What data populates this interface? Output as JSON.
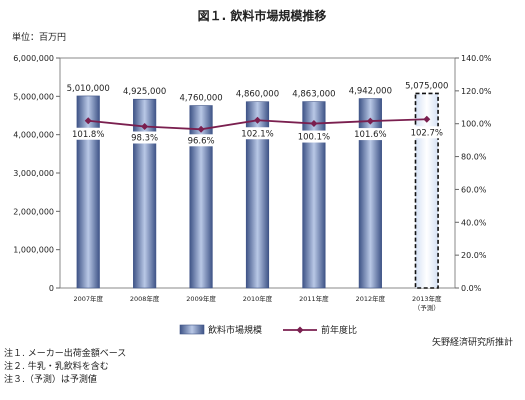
{
  "chart_data": {
    "type": "bar",
    "title": "図１. 飲料市場規模推移",
    "unit_label": "単位：百万円",
    "categories": [
      "2007年度",
      "2008年度",
      "2009年度",
      "2010年度",
      "2011年度",
      "2012年度",
      "2013年度"
    ],
    "category_sublabels": [
      "",
      "",
      "",
      "",
      "",
      "",
      "（予測）"
    ],
    "series": [
      {
        "name": "飲料市場規模",
        "type": "bar",
        "axis": "left",
        "values": [
          5010000,
          4925000,
          4760000,
          4860000,
          4863000,
          4942000,
          5075000
        ],
        "value_labels": [
          "5,010,000",
          "4,925,000",
          "4,760,000",
          "4,860,000",
          "4,863,000",
          "4,942,000",
          "5,075,000"
        ],
        "forecast_index": 6
      },
      {
        "name": "前年度比",
        "type": "line",
        "axis": "right",
        "values": [
          101.8,
          98.3,
          96.6,
          102.1,
          100.1,
          101.6,
          102.7
        ],
        "value_labels": [
          "101.8%",
          "98.3%",
          "96.6%",
          "102.1%",
          "100.1%",
          "101.6%",
          "102.7%"
        ]
      }
    ],
    "y_left": {
      "min": 0,
      "max": 6000000,
      "step": 1000000,
      "tick_labels": [
        "0",
        "1,000,000",
        "2,000,000",
        "3,000,000",
        "4,000,000",
        "5,000,000",
        "6,000,000"
      ]
    },
    "y_right": {
      "min": 0,
      "max": 140,
      "step": 20,
      "tick_labels": [
        "0.0%",
        "20.0%",
        "40.0%",
        "60.0%",
        "80.0%",
        "100.0%",
        "120.0%",
        "140.0%"
      ]
    },
    "grid": false,
    "legend_position": "bottom",
    "source": "矢野経済研究所推計",
    "colors": {
      "bar": "#7f97c2",
      "bar_edge": "#3f5487",
      "line": "#7a1f4f"
    }
  },
  "notes": [
    "注１. メーカー出荷金額ベース",
    "注２. 牛乳・乳飲料を含む",
    "注３.（予測）は予測値"
  ]
}
